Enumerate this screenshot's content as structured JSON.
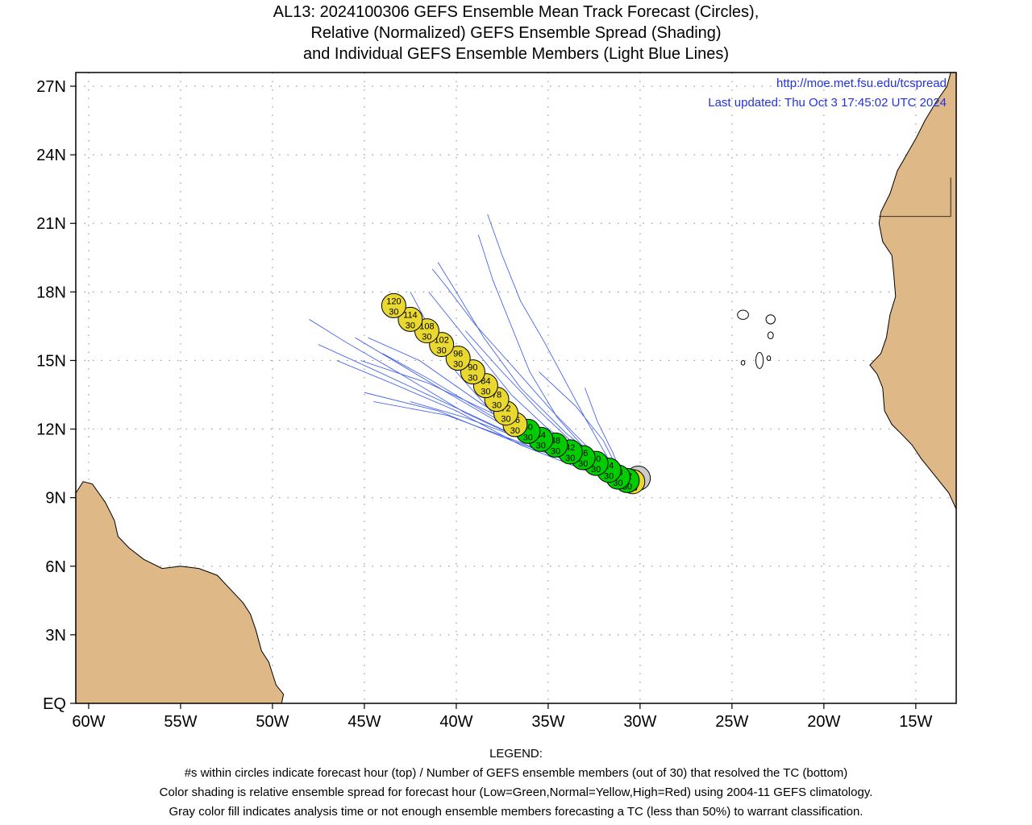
{
  "title": {
    "line1": "AL13: 2024100306 GEFS Ensemble Mean Track Forecast (Circles),",
    "line2": "Relative (Normalized) GEFS Ensemble Spread (Shading)",
    "line3": "and Individual GEFS Ensemble Members (Light Blue Lines)"
  },
  "header_links": {
    "url": "http://moe.met.fsu.edu/tcspread",
    "updated": "Last updated: Thu Oct 3 17:45:02 UTC 2024"
  },
  "axes": {
    "lon_labels": [
      "60W",
      "55W",
      "50W",
      "45W",
      "40W",
      "35W",
      "30W",
      "25W",
      "20W",
      "15W"
    ],
    "lat_labels": [
      "EQ",
      "3N",
      "6N",
      "9N",
      "12N",
      "15N",
      "18N",
      "21N",
      "24N",
      "27N"
    ],
    "lon_range": [
      -60.7,
      -12.8
    ],
    "lat_range": [
      0,
      27.6
    ]
  },
  "legend": {
    "heading": "LEGEND:",
    "line1": "#s within circles indicate forecast hour (top) / Number of GEFS ensemble members (out of 30) that resolved the TC (bottom)",
    "line2": "Color shading is relative ensemble spread for forecast hour (Low=Green,Normal=Yellow,High=Red) using 2004-11 GEFS climatology.",
    "line3": "Gray color fill indicates analysis time or not enough ensemble members forecasting a TC (less than 50%) to warrant classification."
  },
  "colors": {
    "land": "#deb887",
    "low": "#00cc00",
    "normal": "#e8d830",
    "gray": "#cccccc",
    "member": "#3355ee"
  },
  "track": [
    {
      "hour": "0",
      "members": "",
      "lon": -30.1,
      "lat": 9.85,
      "spread": "gray"
    },
    {
      "hour": "6",
      "members": "30",
      "lon": -30.4,
      "lat": 9.7,
      "spread": "normal"
    },
    {
      "hour": "12",
      "members": "30",
      "lon": -30.7,
      "lat": 9.75,
      "spread": "low"
    },
    {
      "hour": "18",
      "members": "30",
      "lon": -31.2,
      "lat": 9.9,
      "spread": "low"
    },
    {
      "hour": "24",
      "members": "30",
      "lon": -31.7,
      "lat": 10.2,
      "spread": "low"
    },
    {
      "hour": "30",
      "members": "30",
      "lon": -32.4,
      "lat": 10.5,
      "spread": "low"
    },
    {
      "hour": "36",
      "members": "30",
      "lon": -33.1,
      "lat": 10.75,
      "spread": "low"
    },
    {
      "hour": "42",
      "members": "30",
      "lon": -33.8,
      "lat": 11.0,
      "spread": "low"
    },
    {
      "hour": "48",
      "members": "30",
      "lon": -34.6,
      "lat": 11.3,
      "spread": "low"
    },
    {
      "hour": "54",
      "members": "30",
      "lon": -35.4,
      "lat": 11.55,
      "spread": "low"
    },
    {
      "hour": "60",
      "members": "30",
      "lon": -36.1,
      "lat": 11.9,
      "spread": "low"
    },
    {
      "hour": "66",
      "members": "30",
      "lon": -36.8,
      "lat": 12.2,
      "spread": "normal"
    },
    {
      "hour": "72",
      "members": "30",
      "lon": -37.3,
      "lat": 12.7,
      "spread": "normal"
    },
    {
      "hour": "78",
      "members": "30",
      "lon": -37.8,
      "lat": 13.3,
      "spread": "normal"
    },
    {
      "hour": "84",
      "members": "30",
      "lon": -38.4,
      "lat": 13.9,
      "spread": "normal"
    },
    {
      "hour": "90",
      "members": "30",
      "lon": -39.1,
      "lat": 14.5,
      "spread": "normal"
    },
    {
      "hour": "96",
      "members": "30",
      "lon": -39.9,
      "lat": 15.1,
      "spread": "normal"
    },
    {
      "hour": "102",
      "members": "30",
      "lon": -40.8,
      "lat": 15.7,
      "spread": "normal"
    },
    {
      "hour": "108",
      "members": "30",
      "lon": -41.6,
      "lat": 16.3,
      "spread": "normal"
    },
    {
      "hour": "114",
      "members": "30",
      "lon": -42.5,
      "lat": 16.8,
      "spread": "normal"
    },
    {
      "hour": "120",
      "members": "30",
      "lon": -43.4,
      "lat": 17.4,
      "spread": "normal"
    }
  ],
  "members": [
    [
      [
        -30.8,
        9.6
      ],
      [
        -33.0,
        10.3
      ],
      [
        -36.0,
        11.4
      ],
      [
        -39.5,
        12.7
      ],
      [
        -43.0,
        14.4
      ],
      [
        -46.0,
        15.8
      ],
      [
        -48.0,
        16.8
      ]
    ],
    [
      [
        -30.8,
        9.6
      ],
      [
        -33.5,
        10.6
      ],
      [
        -37.0,
        11.8
      ],
      [
        -41.0,
        13.3
      ],
      [
        -44.5,
        14.6
      ],
      [
        -47.5,
        15.7
      ]
    ],
    [
      [
        -30.8,
        9.6
      ],
      [
        -33.0,
        10.2
      ],
      [
        -36.5,
        11.3
      ],
      [
        -40.0,
        12.8
      ],
      [
        -43.5,
        14.0
      ],
      [
        -46.5,
        15.0
      ]
    ],
    [
      [
        -30.8,
        9.6
      ],
      [
        -34.0,
        10.8
      ],
      [
        -37.5,
        12.2
      ],
      [
        -40.5,
        13.6
      ],
      [
        -43.0,
        14.8
      ],
      [
        -45.5,
        16.0
      ]
    ],
    [
      [
        -30.8,
        9.6
      ],
      [
        -32.5,
        10.2
      ],
      [
        -35.0,
        11.0
      ],
      [
        -37.8,
        12.5
      ],
      [
        -40.0,
        14.5
      ],
      [
        -41.5,
        16.5
      ],
      [
        -42.5,
        18.0
      ]
    ],
    [
      [
        -30.8,
        9.6
      ],
      [
        -32.0,
        10.5
      ],
      [
        -34.0,
        11.8
      ],
      [
        -36.5,
        13.8
      ],
      [
        -38.5,
        16.0
      ],
      [
        -40.0,
        18.0
      ],
      [
        -41.0,
        19.3
      ]
    ],
    [
      [
        -30.8,
        9.6
      ],
      [
        -32.5,
        10.7
      ],
      [
        -34.5,
        12.5
      ],
      [
        -36.0,
        14.5
      ],
      [
        -37.0,
        16.5
      ],
      [
        -38.0,
        18.5
      ],
      [
        -38.8,
        20.5
      ]
    ],
    [
      [
        -30.8,
        9.6
      ],
      [
        -31.8,
        10.8
      ],
      [
        -33.0,
        12.5
      ],
      [
        -34.0,
        14.0
      ],
      [
        -35.2,
        15.8
      ],
      [
        -36.5,
        17.6
      ],
      [
        -37.5,
        19.6
      ],
      [
        -38.3,
        21.4
      ]
    ],
    [
      [
        -30.8,
        9.6
      ],
      [
        -32.0,
        11.5
      ],
      [
        -33.5,
        13.0
      ],
      [
        -35.5,
        14.5
      ]
    ],
    [
      [
        -30.8,
        9.6
      ],
      [
        -33.0,
        10.6
      ],
      [
        -36.0,
        12.0
      ],
      [
        -38.5,
        13.7
      ],
      [
        -41.0,
        15.5
      ],
      [
        -43.0,
        16.8
      ]
    ],
    [
      [
        -30.8,
        9.6
      ],
      [
        -33.5,
        10.5
      ],
      [
        -37.0,
        11.5
      ],
      [
        -41.0,
        12.8
      ],
      [
        -45.0,
        13.6
      ]
    ],
    [
      [
        -30.8,
        9.6
      ],
      [
        -33.0,
        10.9
      ],
      [
        -35.5,
        12.8
      ],
      [
        -37.5,
        14.5
      ],
      [
        -39.5,
        16.3
      ]
    ],
    [
      [
        -30.8,
        9.6
      ],
      [
        -33.2,
        10.4
      ],
      [
        -36.8,
        11.5
      ],
      [
        -40.5,
        12.6
      ],
      [
        -44.5,
        13.2
      ]
    ],
    [
      [
        -30.8,
        9.6
      ],
      [
        -32.8,
        10.8
      ],
      [
        -35.0,
        12.0
      ],
      [
        -37.0,
        13.5
      ],
      [
        -39.0,
        15.5
      ],
      [
        -40.5,
        17.0
      ],
      [
        -41.5,
        18.0
      ]
    ],
    [
      [
        -30.8,
        9.6
      ],
      [
        -33.5,
        10.6
      ],
      [
        -36.5,
        11.6
      ],
      [
        -39.5,
        12.5
      ],
      [
        -42.5,
        13.2
      ]
    ],
    [
      [
        -30.8,
        9.6
      ],
      [
        -32.5,
        10.3
      ],
      [
        -35.5,
        11.5
      ],
      [
        -38.8,
        13.2
      ],
      [
        -42.0,
        15.0
      ],
      [
        -44.8,
        16.0
      ]
    ],
    [
      [
        -30.8,
        9.6
      ],
      [
        -34.0,
        10.9
      ],
      [
        -37.8,
        12.6
      ],
      [
        -41.5,
        14.0
      ],
      [
        -45.2,
        15.0
      ]
    ],
    [
      [
        -30.8,
        9.6
      ],
      [
        -33.2,
        10.5
      ],
      [
        -36.2,
        11.7
      ],
      [
        -39.0,
        13.0
      ],
      [
        -41.5,
        14.2
      ],
      [
        -44.0,
        15.3
      ]
    ],
    [
      [
        -30.8,
        9.6
      ],
      [
        -31.5,
        11.0
      ],
      [
        -32.3,
        12.3
      ],
      [
        -33.0,
        13.8
      ]
    ],
    [
      [
        -30.8,
        9.6
      ],
      [
        -32.6,
        11.0
      ],
      [
        -34.8,
        12.8
      ],
      [
        -37.0,
        14.8
      ],
      [
        -39.0,
        16.6
      ],
      [
        -40.5,
        18.2
      ],
      [
        -41.3,
        19.0
      ]
    ]
  ],
  "land": {
    "south_america": [
      [
        -60.7,
        0
      ],
      [
        -60.7,
        9.2
      ],
      [
        -60.3,
        9.7
      ],
      [
        -59.8,
        9.6
      ],
      [
        -59.1,
        8.8
      ],
      [
        -58.6,
        8.0
      ],
      [
        -58.4,
        7.3
      ],
      [
        -57.8,
        6.8
      ],
      [
        -57.0,
        6.3
      ],
      [
        -56.0,
        5.9
      ],
      [
        -55.0,
        6.0
      ],
      [
        -54.0,
        5.9
      ],
      [
        -53.0,
        5.6
      ],
      [
        -52.3,
        5.0
      ],
      [
        -51.6,
        4.4
      ],
      [
        -51.2,
        3.9
      ],
      [
        -50.9,
        3.2
      ],
      [
        -50.6,
        2.3
      ],
      [
        -50.2,
        1.8
      ],
      [
        -50.0,
        1.3
      ],
      [
        -49.8,
        0.8
      ],
      [
        -49.4,
        0.4
      ],
      [
        -49.5,
        0
      ]
    ],
    "africa": [
      [
        -12.8,
        27.6
      ],
      [
        -13.1,
        27.6
      ],
      [
        -13.3,
        27.0
      ],
      [
        -13.9,
        26.3
      ],
      [
        -14.5,
        25.5
      ],
      [
        -15.0,
        24.7
      ],
      [
        -15.5,
        24.0
      ],
      [
        -16.0,
        23.3
      ],
      [
        -16.4,
        22.3
      ],
      [
        -16.9,
        21.5
      ],
      [
        -17.0,
        21.0
      ],
      [
        -16.8,
        20.2
      ],
      [
        -16.3,
        19.6
      ],
      [
        -16.2,
        18.8
      ],
      [
        -16.1,
        17.8
      ],
      [
        -16.4,
        17.0
      ],
      [
        -16.6,
        16.0
      ],
      [
        -16.9,
        15.3
      ],
      [
        -17.5,
        14.8
      ],
      [
        -17.1,
        14.4
      ],
      [
        -16.8,
        13.8
      ],
      [
        -16.7,
        12.8
      ],
      [
        -16.3,
        12.2
      ],
      [
        -15.8,
        11.8
      ],
      [
        -15.2,
        11.3
      ],
      [
        -14.7,
        10.7
      ],
      [
        -14.2,
        10.2
      ],
      [
        -13.7,
        9.7
      ],
      [
        -13.2,
        9.2
      ],
      [
        -12.8,
        8.5
      ],
      [
        -12.8,
        27.6
      ]
    ],
    "islands": [
      [
        -22.9,
        16.8,
        0.25,
        0.2
      ],
      [
        -24.4,
        17.0,
        0.3,
        0.2
      ],
      [
        -23.5,
        15.0,
        0.2,
        0.35
      ],
      [
        -22.9,
        16.1,
        0.15,
        0.15
      ],
      [
        -24.4,
        14.9,
        0.1,
        0.1
      ],
      [
        -23.0,
        15.1,
        0.1,
        0.1
      ],
      [
        -61.0,
        13.2,
        0.15,
        0.15
      ]
    ]
  }
}
